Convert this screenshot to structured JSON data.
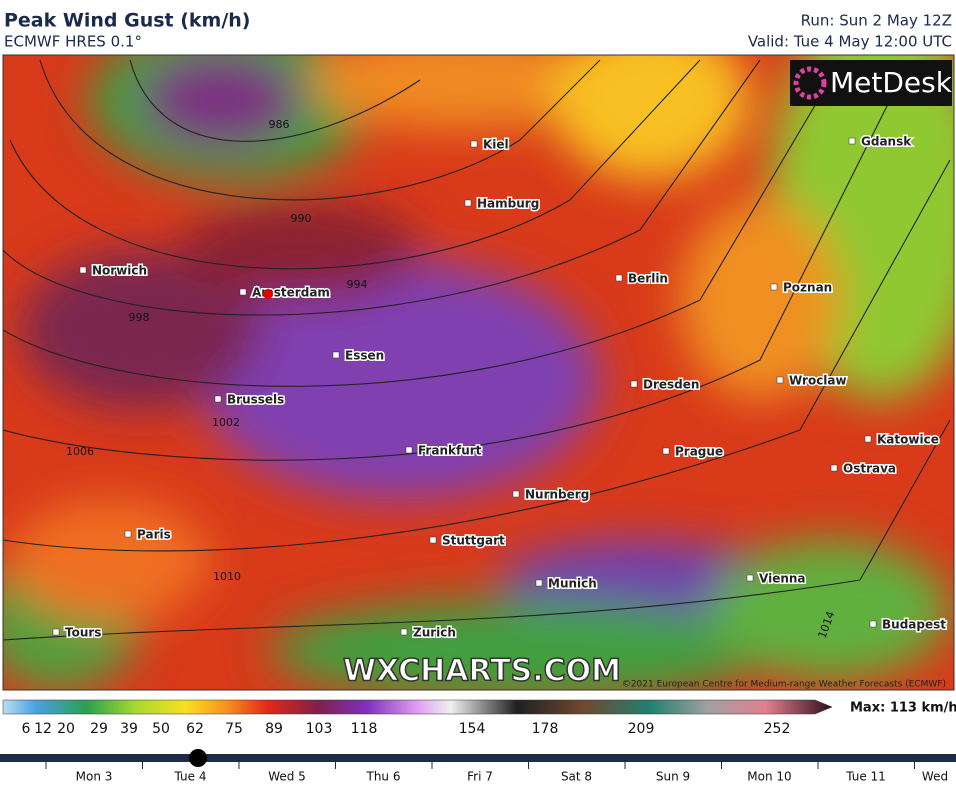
{
  "header": {
    "title": "Peak Wind Gust (km/h)",
    "subtitle": "ECMWF HRES 0.1°",
    "run": "Run: Sun 2 May 12Z",
    "valid": "Valid: Tue 4 May 12:00 UTC"
  },
  "logo": "MetDesk",
  "watermark": "WXCHARTS.COM",
  "copyright": "©2021 European Centre for Medium-range Weather Forecasts (ECMWF)",
  "cities": [
    "Kiel",
    "Hamburg",
    "Gdansk",
    "Norwich",
    "Amsterdam",
    "Berlin",
    "Poznan",
    "Essen",
    "Dresden",
    "Wroclaw",
    "Brussels",
    "Frankfurt",
    "Prague",
    "Katowice",
    "Ostrava",
    "Nurnberg",
    "Paris",
    "Stuttgart",
    "Munich",
    "Vienna",
    "Tours",
    "Zurich",
    "Budapest"
  ],
  "isobars": [
    986,
    990,
    994,
    998,
    1002,
    1006,
    1010,
    1014
  ],
  "scale": {
    "ticks": [
      6,
      12,
      20,
      29,
      39,
      50,
      62,
      75,
      89,
      103,
      118,
      154,
      178,
      209,
      252
    ],
    "max": "Max: 113 km/h"
  },
  "timeline": {
    "days": [
      "Mon 3",
      "Tue 4",
      "Wed 5",
      "Thu 6",
      "Fri 7",
      "Sat 8",
      "Sun 9",
      "Mon 10",
      "Tue 11",
      "Wed"
    ]
  }
}
